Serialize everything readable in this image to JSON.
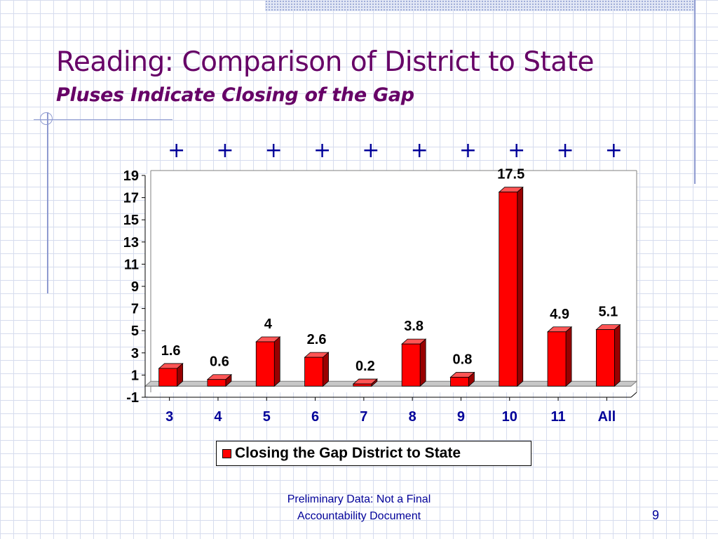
{
  "slide": {
    "title": "Reading: Comparison of District to State",
    "subtitle": "Pluses Indicate Closing of the Gap",
    "footer_line1": "Preliminary Data:  Not a Final",
    "footer_line2": "Accountability Document",
    "page_number": "9"
  },
  "chart_data": {
    "type": "bar",
    "categories": [
      "3",
      "4",
      "5",
      "6",
      "7",
      "8",
      "9",
      "10",
      "11",
      "All"
    ],
    "series": [
      {
        "name": "Closing the Gap District to State",
        "values": [
          1.6,
          0.6,
          4,
          2.6,
          0.2,
          3.8,
          0.8,
          17.5,
          4.9,
          5.1
        ],
        "color": "#ff0000"
      }
    ],
    "data_labels": [
      "1.6",
      "0.6",
      "4",
      "2.6",
      "0.2",
      "3.8",
      "0.8",
      "17.5",
      "4.9",
      "5.1"
    ],
    "markers": [
      "+",
      "+",
      "+",
      "+",
      "+",
      "+",
      "+",
      "+",
      "+",
      "+"
    ],
    "y_ticks": [
      "-1",
      "1",
      "3",
      "5",
      "7",
      "9",
      "11",
      "13",
      "15",
      "17",
      "19"
    ],
    "ylim": [
      -1,
      19
    ],
    "grid": false,
    "legend_position": "bottom",
    "three_d": true,
    "marker_color": "#000099"
  }
}
